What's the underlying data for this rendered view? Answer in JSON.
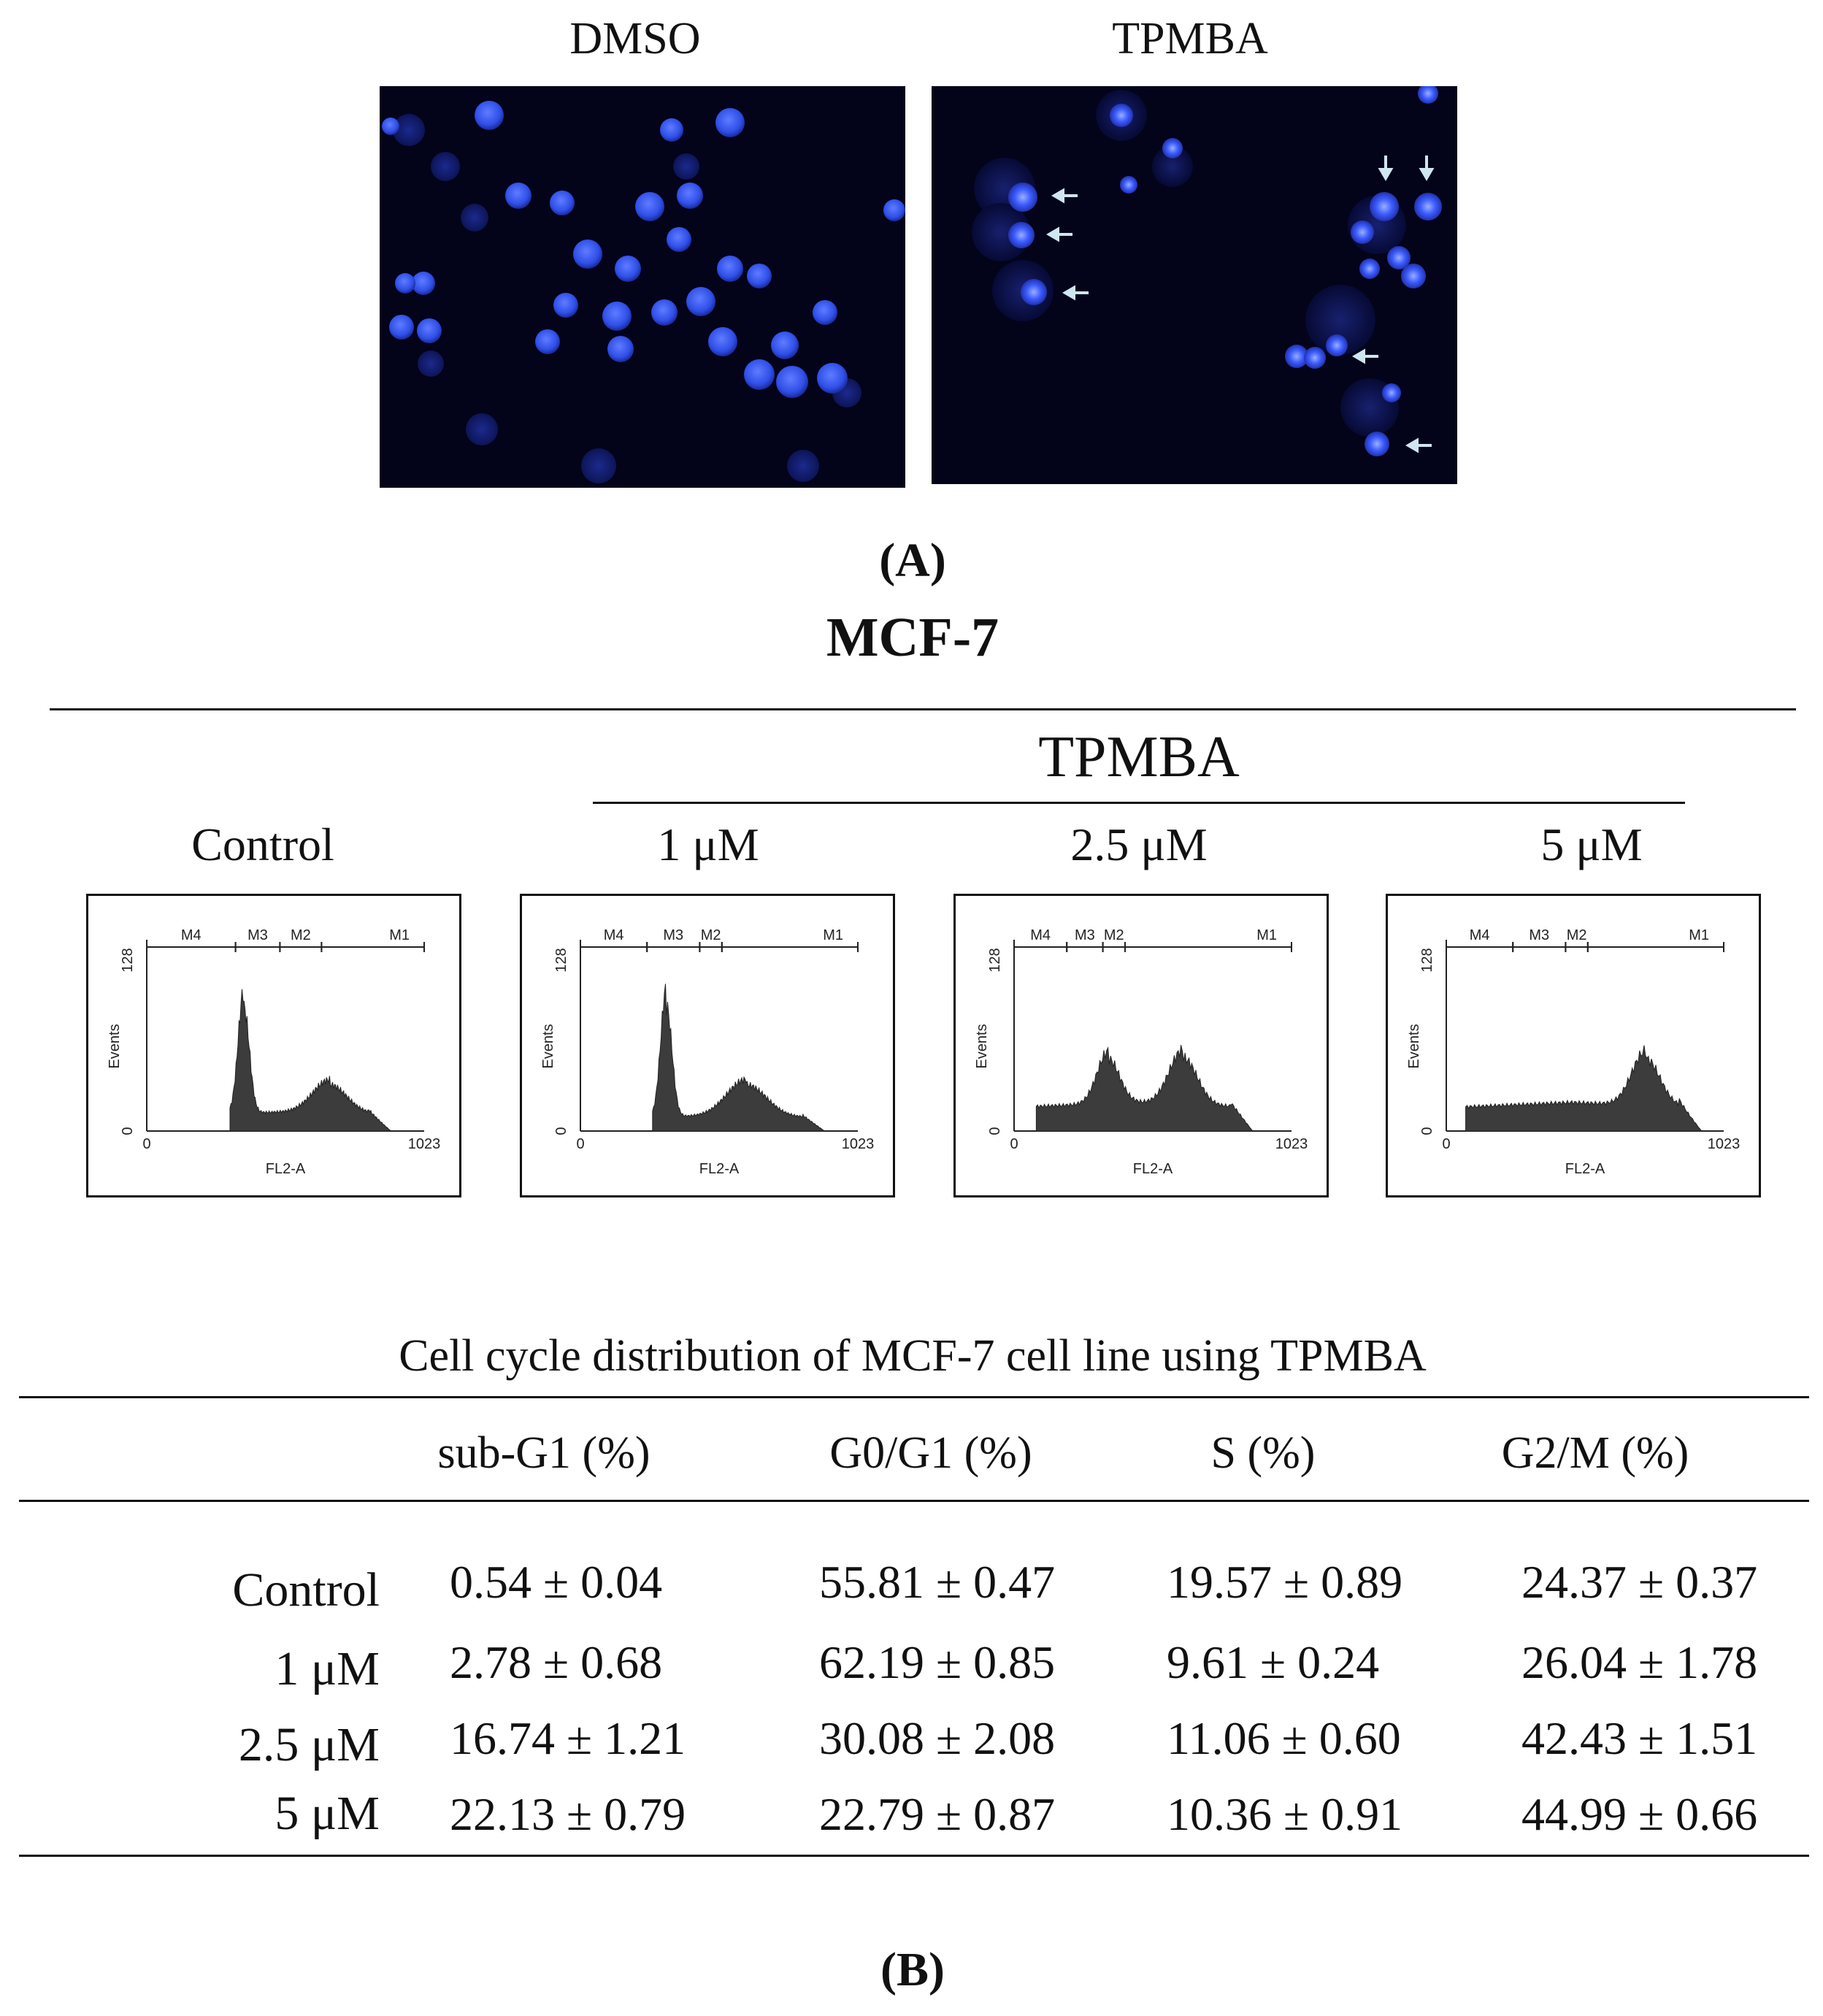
{
  "panel_a": {
    "label": "(A)",
    "images": [
      {
        "title": "DMSO"
      },
      {
        "title": "TPMBA"
      }
    ]
  },
  "panel_b": {
    "label": "(B)",
    "cell_line_title": "MCF-7",
    "treatment_header": "TPMBA",
    "histograms": [
      {
        "label": "Control",
        "markers": [
          "M4",
          "M3",
          "M2",
          "M1"
        ],
        "y_axis_label": "Events",
        "y_max_tick": "128",
        "y_min_tick": "0",
        "x_axis_label": "FL2-A",
        "x_min_tick": "0",
        "x_max_tick": "1023"
      },
      {
        "label": "1 μM",
        "markers": [
          "M4",
          "M3",
          "M2",
          "M1"
        ],
        "y_axis_label": "Events",
        "y_max_tick": "128",
        "y_min_tick": "0",
        "x_axis_label": "FL2-A",
        "x_min_tick": "0",
        "x_max_tick": "1023"
      },
      {
        "label": "2.5 μM",
        "markers": [
          "M4",
          "M3",
          "M2",
          "M1"
        ],
        "y_axis_label": "Events",
        "y_max_tick": "128",
        "y_min_tick": "0",
        "x_axis_label": "FL2-A",
        "x_min_tick": "0",
        "x_max_tick": "1023"
      },
      {
        "label": "5 μM",
        "markers": [
          "M4",
          "M3",
          "M2",
          "M1"
        ],
        "y_axis_label": "Events",
        "y_max_tick": "128",
        "y_min_tick": "0",
        "x_axis_label": "FL2-A",
        "x_min_tick": "0",
        "x_max_tick": "1023"
      }
    ],
    "table": {
      "title": "Cell cycle distribution of MCF-7 cell line using TPMBA",
      "columns": [
        "sub-G1 (%)",
        "G0/G1 (%)",
        "S (%)",
        "G2/M (%)"
      ],
      "rows": [
        {
          "label": "Control",
          "values": [
            "0.54 ± 0.04",
            "55.81 ± 0.47",
            "19.57 ± 0.89",
            "24.37 ± 0.37"
          ]
        },
        {
          "label": "1 μM",
          "values": [
            "2.78 ± 0.68",
            "62.19 ± 0.85",
            "9.61 ± 0.24",
            "26.04 ± 1.78"
          ]
        },
        {
          "label": "2.5 μM",
          "values": [
            "16.74 ± 1.21",
            "30.08 ± 2.08",
            "11.06 ± 0.60",
            "42.43 ± 1.51"
          ]
        },
        {
          "label": "5 μM",
          "values": [
            "22.13 ± 0.79",
            "22.79 ± 0.87",
            "10.36 ± 0.91",
            "44.99 ± 0.66"
          ]
        }
      ]
    }
  },
  "colors": {
    "micrograph_bg": "#03031a",
    "nucleus": "#3a5cff",
    "histogram_fill": "#3c3c3c",
    "arrow": "#cfe6f0"
  }
}
